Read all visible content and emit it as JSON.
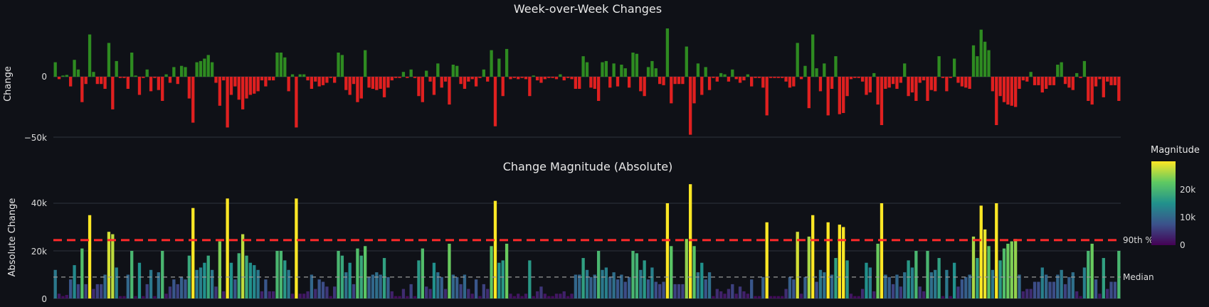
{
  "chart_data": [
    {
      "type": "bar",
      "title": "Week-over-Week Changes",
      "ylabel": "Change",
      "ylim": [
        -50000,
        40000
      ],
      "yticks": [
        0,
        -50000
      ],
      "ytick_labels": [
        "0",
        "−50k"
      ],
      "grid": true,
      "colors": {
        "positive": "#2e8b21",
        "negative": "#e02020"
      },
      "values": [
        12000,
        -2000,
        1000,
        1500,
        -8000,
        14000,
        6000,
        -21000,
        -6000,
        35000,
        4000,
        -6000,
        -6000,
        -10000,
        28000,
        -27000,
        13000,
        -1000,
        -1000,
        -10000,
        20000,
        1000,
        -15000,
        -1000,
        6000,
        -12000,
        -1000,
        -11000,
        -20000,
        2000,
        -5000,
        8000,
        -6000,
        9000,
        8000,
        -18000,
        -38000,
        12000,
        13000,
        15000,
        18000,
        12000,
        -5000,
        -24000,
        -3000,
        -42000,
        -15000,
        -8000,
        -19000,
        -27000,
        -18000,
        -15000,
        -14000,
        -12000,
        -3000,
        -8000,
        -3000,
        -3000,
        20000,
        20000,
        16000,
        -12000,
        2000,
        -42000,
        2000,
        2000,
        -3000,
        -10000,
        -4000,
        -8000,
        -7000,
        -5000,
        -1000,
        -5000,
        20000,
        18000,
        -11000,
        -15000,
        -6000,
        -21000,
        -18000,
        22000,
        -9000,
        -10000,
        -11000,
        -10000,
        -17000,
        -9000,
        -3000,
        -1000,
        -1000,
        4000,
        -1000,
        6000,
        -1000,
        -16000,
        -21000,
        5000,
        -4000,
        -15000,
        11000,
        -9000,
        -4000,
        -23000,
        10000,
        9000,
        -6000,
        -10000,
        -4000,
        -2000,
        -8000,
        -1000,
        6000,
        -4000,
        22000,
        -41000,
        15000,
        -16000,
        23000,
        -2000,
        -1000,
        -2000,
        -1000,
        -2000,
        -16000,
        1000,
        -3000,
        -5000,
        -2000,
        -1000,
        -1000,
        -2000,
        2000,
        -3000,
        -1000,
        -2000,
        -10000,
        -10000,
        17000,
        12000,
        -9000,
        -10000,
        -20000,
        12000,
        13000,
        -9000,
        11000,
        -8000,
        10000,
        7000,
        -9000,
        20000,
        19000,
        -12000,
        -16000,
        8000,
        13000,
        7000,
        -6000,
        -7000,
        40000,
        -22000,
        -6000,
        -6000,
        -6000,
        25000,
        -48000,
        -22000,
        11000,
        -15000,
        8000,
        -11000,
        -1000,
        -4000,
        3000,
        2000,
        -4000,
        6000,
        -2000,
        -5000,
        -3000,
        2000,
        -8000,
        -1000,
        -1000,
        -9000,
        -32000,
        -1000,
        -1000,
        -1000,
        -1000,
        -4000,
        -9000,
        -8000,
        28000,
        -2000,
        9000,
        -26000,
        35000,
        7000,
        -12000,
        11000,
        -32000,
        -10000,
        17000,
        -31000,
        -30000,
        -16000,
        -2000,
        -1000,
        -1000,
        -4000,
        -15000,
        -13000,
        3000,
        -23000,
        -40000,
        -10000,
        -9000,
        -6000,
        -10000,
        -5000,
        11000,
        -16000,
        -13000,
        -20000,
        -5000,
        -3000,
        -20000,
        -11000,
        -12000,
        17000,
        -1000,
        -12000,
        -1000,
        15000,
        -5000,
        -8000,
        -9000,
        -10000,
        26000,
        17000,
        39000,
        29000,
        22000,
        -12000,
        -40000,
        -16000,
        -21000,
        -23000,
        -24000,
        -25000,
        -10000,
        -3000,
        -4000,
        4000,
        -7000,
        -7000,
        -13000,
        -10000,
        -7000,
        -7000,
        10000,
        12000,
        -6000,
        -9000,
        -11000,
        3000,
        -1000,
        13000,
        -20000,
        -23000,
        -8000,
        -2000,
        -17000,
        -4000,
        -7000,
        -7000,
        -20000
      ]
    },
    {
      "type": "bar",
      "title": "Change Magnitude (Absolute)",
      "ylabel": "Absolute Change",
      "ylim": [
        0,
        50000
      ],
      "yticks": [
        0,
        20000,
        40000
      ],
      "ytick_labels": [
        "0",
        "20k",
        "40k"
      ],
      "grid": true,
      "reference_lines": [
        {
          "label": "90th %ile",
          "value": 24500,
          "style": "red dashed"
        },
        {
          "label": "Median",
          "value": 9000,
          "style": "gray dashed"
        }
      ],
      "colorbar": {
        "title": "Magnitude",
        "range": [
          0,
          30000
        ],
        "ticks": [
          0,
          10000,
          20000
        ],
        "tick_labels": [
          "0",
          "10k",
          "20k"
        ],
        "colorscale": "viridis"
      },
      "values": [
        12000,
        2000,
        1000,
        1500,
        8000,
        14000,
        6000,
        21000,
        6000,
        35000,
        4000,
        6000,
        6000,
        10000,
        28000,
        27000,
        13000,
        1000,
        1000,
        10000,
        20000,
        1000,
        15000,
        1000,
        6000,
        12000,
        1000,
        11000,
        20000,
        2000,
        5000,
        8000,
        6000,
        9000,
        8000,
        18000,
        38000,
        12000,
        13000,
        15000,
        18000,
        12000,
        5000,
        24000,
        3000,
        42000,
        15000,
        8000,
        19000,
        27000,
        18000,
        15000,
        14000,
        12000,
        3000,
        8000,
        3000,
        3000,
        20000,
        20000,
        16000,
        12000,
        2000,
        42000,
        2000,
        2000,
        3000,
        10000,
        4000,
        8000,
        7000,
        5000,
        1000,
        5000,
        20000,
        18000,
        11000,
        15000,
        6000,
        21000,
        18000,
        22000,
        9000,
        10000,
        11000,
        10000,
        17000,
        9000,
        3000,
        1000,
        1000,
        4000,
        1000,
        6000,
        1000,
        16000,
        21000,
        5000,
        4000,
        15000,
        11000,
        9000,
        4000,
        23000,
        10000,
        9000,
        6000,
        10000,
        4000,
        2000,
        8000,
        1000,
        6000,
        4000,
        22000,
        41000,
        15000,
        16000,
        23000,
        2000,
        1000,
        2000,
        1000,
        2000,
        16000,
        1000,
        3000,
        5000,
        2000,
        1000,
        1000,
        2000,
        2000,
        3000,
        1000,
        2000,
        10000,
        10000,
        17000,
        12000,
        9000,
        10000,
        20000,
        12000,
        13000,
        9000,
        11000,
        8000,
        10000,
        7000,
        9000,
        20000,
        19000,
        12000,
        16000,
        8000,
        13000,
        7000,
        6000,
        7000,
        40000,
        22000,
        6000,
        6000,
        6000,
        25000,
        48000,
        22000,
        11000,
        15000,
        8000,
        11000,
        1000,
        4000,
        3000,
        2000,
        4000,
        6000,
        2000,
        5000,
        3000,
        2000,
        8000,
        1000,
        1000,
        9000,
        32000,
        1000,
        1000,
        1000,
        1000,
        4000,
        9000,
        8000,
        28000,
        2000,
        9000,
        26000,
        35000,
        7000,
        12000,
        11000,
        32000,
        10000,
        17000,
        31000,
        30000,
        16000,
        2000,
        1000,
        1000,
        4000,
        15000,
        13000,
        3000,
        23000,
        40000,
        10000,
        9000,
        6000,
        10000,
        5000,
        11000,
        16000,
        13000,
        20000,
        5000,
        3000,
        20000,
        11000,
        12000,
        17000,
        1000,
        12000,
        1000,
        15000,
        5000,
        8000,
        9000,
        10000,
        26000,
        17000,
        39000,
        29000,
        22000,
        12000,
        40000,
        16000,
        21000,
        23000,
        24000,
        25000,
        10000,
        3000,
        4000,
        4000,
        7000,
        7000,
        13000,
        10000,
        7000,
        7000,
        10000,
        12000,
        6000,
        9000,
        11000,
        3000,
        1000,
        13000,
        20000,
        23000,
        8000,
        2000,
        17000,
        4000,
        7000,
        7000,
        20000
      ]
    }
  ]
}
